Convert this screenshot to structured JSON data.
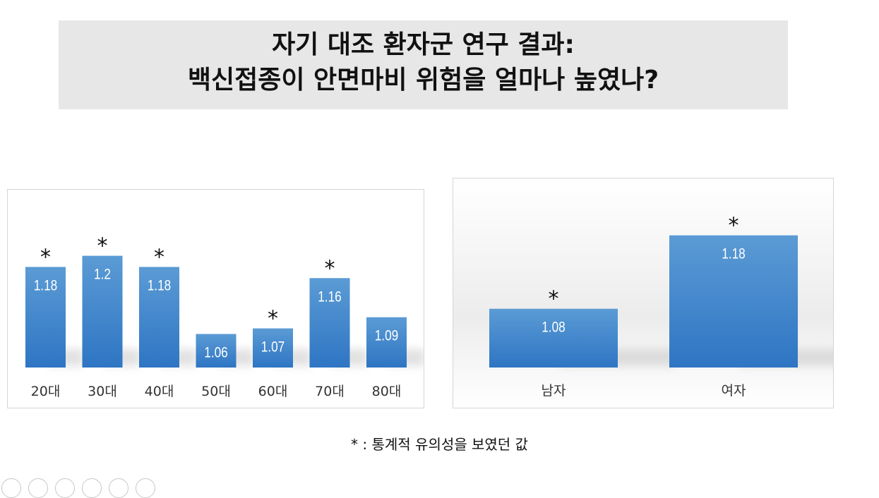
{
  "title": {
    "line1": "자기 대조 환자군 연구 결과:",
    "line2": "백신접종이 안면마비 위험을 얼마나 높였나?"
  },
  "footnote": "* : 통계적 유의성을 보였던 값",
  "colors": {
    "bar_top": "#5b9bd5",
    "bar_bottom": "#2e75c3",
    "label": "#ffffff",
    "title_bg": "#e7e7e7"
  },
  "chart_data": [
    {
      "type": "bar",
      "categories": [
        "20대",
        "30대",
        "40대",
        "50대",
        "60대",
        "70대",
        "80대"
      ],
      "values": [
        1.18,
        1.2,
        1.18,
        1.06,
        1.07,
        1.16,
        1.09
      ],
      "value_labels": [
        "1.18",
        "1.2",
        "1.18",
        "1.06",
        "1.07",
        "1.16",
        "1.09"
      ],
      "significant": [
        true,
        true,
        true,
        false,
        true,
        true,
        false
      ],
      "marker": "*",
      "title": "",
      "xlabel": "",
      "ylabel": "",
      "ylim": [
        1.0,
        1.25
      ],
      "grid": false,
      "legend": "none"
    },
    {
      "type": "bar",
      "categories": [
        "남자",
        "여자"
      ],
      "values": [
        1.08,
        1.18
      ],
      "value_labels": [
        "1.08",
        "1.18"
      ],
      "significant": [
        true,
        true
      ],
      "marker": "*",
      "title": "",
      "xlabel": "",
      "ylabel": "",
      "ylim": [
        1.0,
        1.22
      ],
      "grid": false,
      "legend": "none"
    }
  ]
}
